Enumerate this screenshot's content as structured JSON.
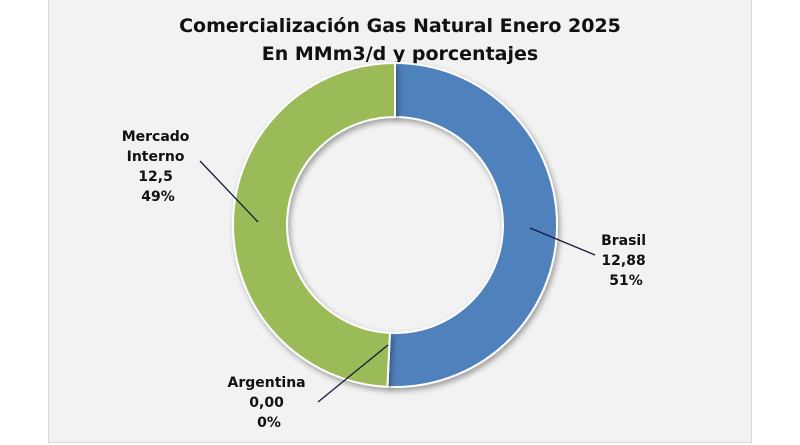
{
  "chart_data": {
    "type": "pie",
    "style": "donut",
    "title": "Comercialización Gas Natural Enero 2025",
    "subtitle": "En MMm3/d y porcentajes",
    "slices": [
      {
        "name": "Brasil",
        "value": 12.88,
        "value_label": "12,88",
        "percent_label": "51%",
        "color": "#4f81bd"
      },
      {
        "name": "Argentina",
        "value": 0.0,
        "value_label": "0,00",
        "percent_label": "0%",
        "color": "#c0504d"
      },
      {
        "name": "Mercado Interno",
        "value": 12.5,
        "value_label": "12,5",
        "percent_label": "49%",
        "color": "#9bbb59"
      }
    ]
  },
  "labels": {
    "brasil": [
      "Brasil",
      "12,88",
      "51%"
    ],
    "argentina": [
      "Argentina",
      "0,00",
      "0%"
    ],
    "mercado": [
      "Mercado",
      "Interno",
      "12,5",
      "49%"
    ]
  }
}
